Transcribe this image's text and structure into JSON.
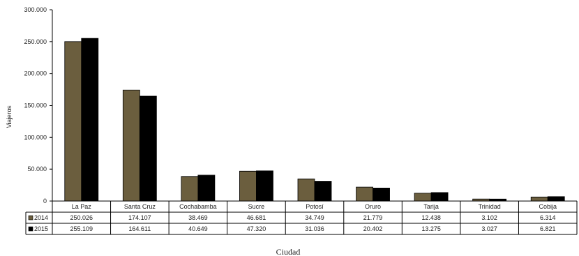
{
  "chart_data": {
    "type": "bar",
    "ylabel": "Viajeros",
    "xlabel": "Ciudad",
    "ylim": [
      0,
      300000
    ],
    "ytick_values": [
      0,
      50000,
      100000,
      150000,
      200000,
      250000,
      300000
    ],
    "ytick_labels": [
      "0",
      "50.000",
      "100.000",
      "150.000",
      "200.000",
      "250.000",
      "300.000"
    ],
    "categories": [
      "La Paz",
      "Santa Cruz",
      "Cochabamba",
      "Sucre",
      "Potosí",
      "Oruro",
      "Tarija",
      "Trinidad",
      "Cobija"
    ],
    "series": [
      {
        "name": "2014",
        "color": "#6b5e3e",
        "values": [
          250026,
          174107,
          38469,
          46681,
          34749,
          21779,
          12438,
          3102,
          6314
        ],
        "labels": [
          "250.026",
          "174.107",
          "38.469",
          "46.681",
          "34.749",
          "21.779",
          "12.438",
          "3.102",
          "6.314"
        ]
      },
      {
        "name": "2015",
        "color": "#000000",
        "values": [
          255109,
          164611,
          40649,
          47320,
          31036,
          20402,
          13275,
          3027,
          6821
        ],
        "labels": [
          "255.109",
          "164.611",
          "40.649",
          "47.320",
          "31.036",
          "20.402",
          "13.275",
          "3.027",
          "6.821"
        ]
      }
    ],
    "grid": false,
    "legend": "data-table-left"
  }
}
